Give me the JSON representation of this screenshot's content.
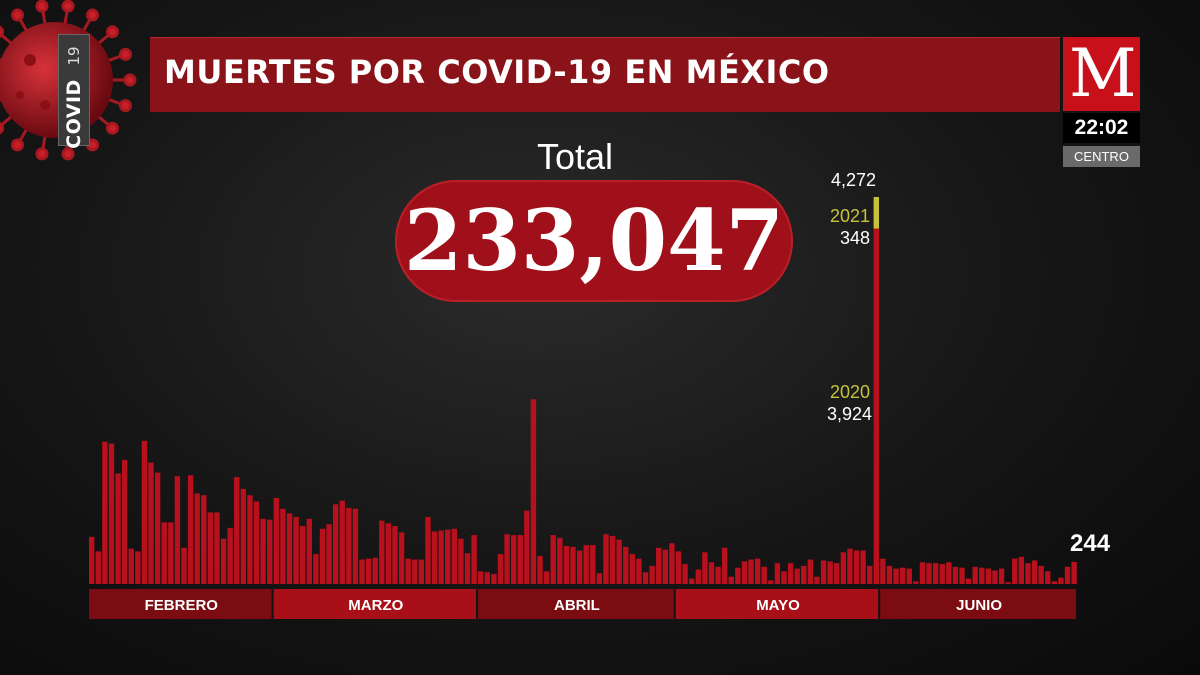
{
  "header": {
    "title": "MUERTES POR COVID-19 EN MÉXICO",
    "covid_tag": "COVID",
    "covid_tag_number": "19",
    "logo_letter": "M",
    "clock": "22:02",
    "time_zone": "CENTRO"
  },
  "total": {
    "label": "Total",
    "value": "233,047"
  },
  "annotations": {
    "peak_total": "4,272",
    "year_2021_label": "2021",
    "year_2021_value": "348",
    "year_2020_label": "2020",
    "year_2020_value": "3,924",
    "last_value": "244"
  },
  "colors": {
    "bar": "#b8101c",
    "bar_dark": "#7a0a12",
    "highlight_2021": "#c7c23a",
    "month_band_a": "#7a0c12",
    "month_band_b": "#a80f19",
    "title_bar": "#8a1319"
  },
  "chart_data": {
    "type": "bar",
    "title": "MUERTES POR COVID-19 EN MÉXICO",
    "months": [
      {
        "label": "FEBRERO",
        "values": [
          520,
          360,
          1570,
          1550,
          1220,
          1370,
          390,
          360,
          1580,
          1340,
          1230,
          680,
          680,
          1190,
          400,
          1200,
          1000,
          980,
          790,
          790,
          500,
          620,
          1180,
          1050,
          980,
          910,
          720,
          710
        ]
      },
      {
        "label": "MARZO",
        "values": [
          950,
          830,
          780,
          740,
          640,
          720,
          330,
          610,
          660,
          880,
          920,
          840,
          830,
          270,
          280,
          290,
          700,
          670,
          640,
          570,
          280,
          270,
          270,
          740,
          580,
          590,
          600,
          610,
          500,
          340,
          540
        ]
      },
      {
        "label": "ABRIL",
        "values": [
          140,
          130,
          110,
          330,
          550,
          540,
          540,
          810,
          2040,
          310,
          140,
          540,
          510,
          420,
          410,
          370,
          430,
          430,
          120,
          550,
          530,
          490,
          410,
          330,
          280,
          130,
          200,
          400,
          380,
          450
        ]
      },
      {
        "label": "MAYO",
        "values": [
          360,
          220,
          60,
          160,
          350,
          240,
          190,
          400,
          80,
          180,
          250,
          270,
          280,
          190,
          40,
          230,
          140,
          230,
          170,
          200,
          270,
          80,
          260,
          250,
          230,
          350,
          390,
          370,
          370,
          200,
          3924
        ]
      },
      {
        "label": "JUNIO",
        "values": [
          280,
          200,
          170,
          180,
          170,
          30,
          240,
          230,
          230,
          220,
          240,
          190,
          180,
          60,
          190,
          180,
          170,
          150,
          170,
          20,
          280,
          300,
          230,
          260,
          200,
          140,
          30,
          70,
          190,
          244
        ]
      }
    ],
    "ylim": [
      0,
      4272
    ],
    "grid": false,
    "annotations": [
      {
        "label": "2021",
        "value": 348
      },
      {
        "label": "2020",
        "value": 3924
      },
      {
        "label": "total",
        "value": 4272
      },
      {
        "label": "last",
        "value": 244
      }
    ]
  }
}
